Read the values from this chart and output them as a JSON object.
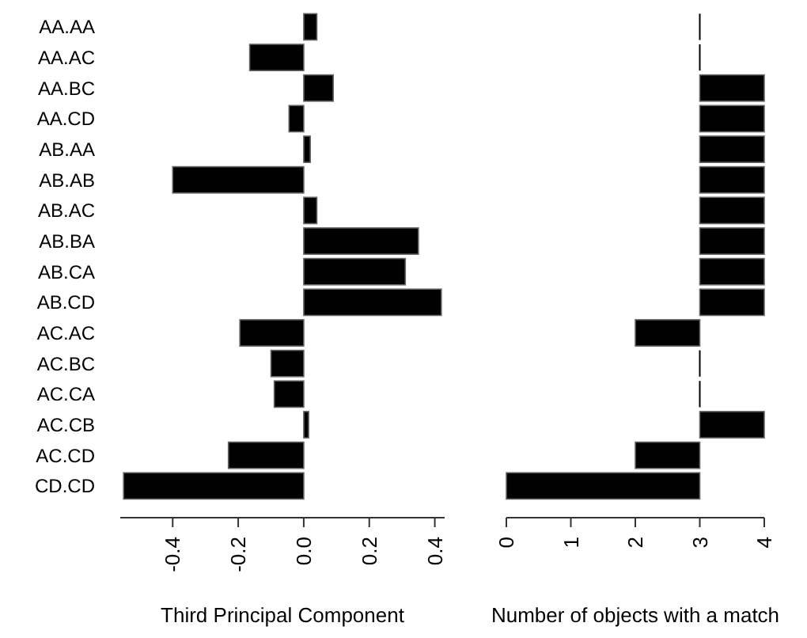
{
  "chart_data": [
    {
      "type": "bar",
      "orientation": "horizontal",
      "xlabel": "Third Principal Component",
      "categories": [
        "AA.AA",
        "AA.AC",
        "AA.BC",
        "AA.CD",
        "AB.AA",
        "AB.AB",
        "AB.AC",
        "AB.BA",
        "AB.CA",
        "AB.CD",
        "AC.AC",
        "AC.BC",
        "AC.CA",
        "AC.CB",
        "AC.CD",
        "CD.CD"
      ],
      "values": [
        0.04,
        -0.165,
        0.09,
        -0.045,
        0.02,
        -0.4,
        0.04,
        0.35,
        0.31,
        0.42,
        -0.195,
        -0.1,
        -0.09,
        0.015,
        -0.23,
        -0.55
      ],
      "color": "#000000",
      "xlim": [
        -0.56,
        0.43
      ],
      "xticks": [
        -0.4,
        -0.2,
        {
          "value": 0,
          "label": "0.0"
        },
        0.2,
        0.4
      ]
    },
    {
      "type": "bar",
      "orientation": "horizontal",
      "xlabel": "Number of objects with a match",
      "categories": [
        null,
        null,
        null,
        null,
        null,
        null,
        null,
        null,
        null,
        null,
        null,
        null,
        null,
        null,
        null,
        null
      ],
      "base": [
        3,
        3,
        3,
        3,
        3,
        3,
        3,
        3,
        3,
        3,
        3,
        3,
        3,
        3,
        3,
        3
      ],
      "values": [
        0,
        0,
        1,
        1,
        1,
        1,
        1,
        1,
        1,
        1,
        -1,
        0,
        0,
        1,
        -1,
        -3
      ],
      "color": "#000000",
      "xlim": [
        0,
        4
      ],
      "xticks": [
        0,
        1,
        2,
        3,
        4
      ]
    }
  ]
}
